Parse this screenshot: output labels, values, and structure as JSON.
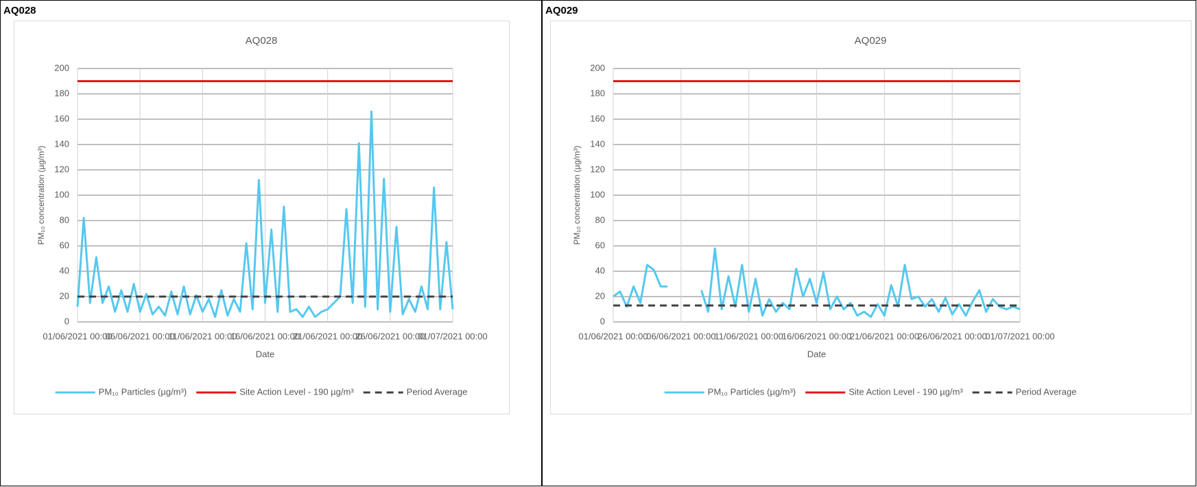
{
  "panels": [
    {
      "label": "AQ028"
    },
    {
      "label": "AQ029"
    }
  ],
  "chart_data": [
    {
      "type": "line",
      "title": "AQ028",
      "x_label": "Date",
      "y_label": "PM₁₀ concentration (µg/m³)",
      "grid": true,
      "legend": "bottom",
      "xlim": [
        "01/06/2021 00:00",
        "01/07/2021 00:00"
      ],
      "xticks": [
        "01/06/2021 00:00",
        "06/06/2021 00:00",
        "11/06/2021 00:00",
        "16/06/2021 00:00",
        "21/06/2021 00:00",
        "26/06/2021 00:00",
        "01/07/2021 00:00"
      ],
      "ylim": [
        0,
        200
      ],
      "yticks": [
        0,
        20,
        40,
        60,
        80,
        100,
        120,
        140,
        160,
        180,
        200
      ],
      "x": [
        "01/06/2021 00:00",
        "01/06/2021 12:00",
        "02/06/2021 00:00",
        "02/06/2021 12:00",
        "03/06/2021 00:00",
        "03/06/2021 12:00",
        "04/06/2021 00:00",
        "04/06/2021 12:00",
        "05/06/2021 00:00",
        "05/06/2021 12:00",
        "06/06/2021 00:00",
        "06/06/2021 12:00",
        "07/06/2021 00:00",
        "07/06/2021 12:00",
        "08/06/2021 00:00",
        "08/06/2021 12:00",
        "09/06/2021 00:00",
        "09/06/2021 12:00",
        "10/06/2021 00:00",
        "10/06/2021 12:00",
        "11/06/2021 00:00",
        "11/06/2021 12:00",
        "12/06/2021 00:00",
        "12/06/2021 12:00",
        "13/06/2021 00:00",
        "13/06/2021 12:00",
        "14/06/2021 00:00",
        "14/06/2021 12:00",
        "15/06/2021 00:00",
        "15/06/2021 12:00",
        "16/06/2021 00:00",
        "16/06/2021 12:00",
        "17/06/2021 00:00",
        "17/06/2021 12:00",
        "18/06/2021 00:00",
        "18/06/2021 12:00",
        "19/06/2021 00:00",
        "19/06/2021 12:00",
        "20/06/2021 00:00",
        "20/06/2021 12:00",
        "21/06/2021 00:00",
        "21/06/2021 12:00",
        "22/06/2021 00:00",
        "22/06/2021 12:00",
        "23/06/2021 00:00",
        "23/06/2021 12:00",
        "24/06/2021 00:00",
        "24/06/2021 12:00",
        "25/06/2021 00:00",
        "25/06/2021 12:00",
        "26/06/2021 00:00",
        "26/06/2021 12:00",
        "27/06/2021 00:00",
        "27/06/2021 12:00",
        "28/06/2021 00:00",
        "28/06/2021 12:00",
        "29/06/2021 00:00",
        "29/06/2021 12:00",
        "30/06/2021 00:00",
        "30/06/2021 12:00",
        "01/07/2021 00:00"
      ],
      "series": [
        {
          "name": "PM₁₀ Particles (µg/m³)",
          "color": "#55c8f0",
          "values": [
            12,
            82,
            15,
            51,
            15,
            28,
            8,
            25,
            8,
            30,
            8,
            22,
            6,
            12,
            5,
            24,
            6,
            28,
            6,
            21,
            8,
            18,
            4,
            25,
            5,
            18,
            8,
            62,
            10,
            112,
            15,
            73,
            8,
            91,
            8,
            10,
            4,
            12,
            4,
            8,
            10,
            15,
            20,
            89,
            15,
            141,
            12,
            166,
            10,
            113,
            8,
            75,
            6,
            18,
            8,
            28,
            10,
            106,
            10,
            63,
            10
          ]
        },
        {
          "name": "Site Action Level - 190 µg/m³",
          "color": "#e8141b",
          "values": [
            190,
            190,
            190,
            190,
            190,
            190,
            190,
            190,
            190,
            190,
            190,
            190,
            190,
            190,
            190,
            190,
            190,
            190,
            190,
            190,
            190,
            190,
            190,
            190,
            190,
            190,
            190,
            190,
            190,
            190,
            190,
            190,
            190,
            190,
            190,
            190,
            190,
            190,
            190,
            190,
            190,
            190,
            190,
            190,
            190,
            190,
            190,
            190,
            190,
            190,
            190,
            190,
            190,
            190,
            190,
            190,
            190,
            190,
            190,
            190,
            190
          ]
        },
        {
          "name": "Period Average",
          "color": "#404040",
          "dashed": true,
          "values": [
            20,
            20,
            20,
            20,
            20,
            20,
            20,
            20,
            20,
            20,
            20,
            20,
            20,
            20,
            20,
            20,
            20,
            20,
            20,
            20,
            20,
            20,
            20,
            20,
            20,
            20,
            20,
            20,
            20,
            20,
            20,
            20,
            20,
            20,
            20,
            20,
            20,
            20,
            20,
            20,
            20,
            20,
            20,
            20,
            20,
            20,
            20,
            20,
            20,
            20,
            20,
            20,
            20,
            20,
            20,
            20,
            20,
            20,
            20,
            20,
            20
          ]
        }
      ]
    },
    {
      "type": "line",
      "title": "AQ029",
      "x_label": "Date",
      "y_label": "PM₁₀ concentration (µg/m³)",
      "grid": true,
      "legend": "bottom",
      "xlim": [
        "01/06/2021 00:00",
        "01/07/2021 00:00"
      ],
      "xticks": [
        "01/06/2021 00:00",
        "06/06/2021 00:00",
        "11/06/2021 00:00",
        "16/06/2021 00:00",
        "21/06/2021 00:00",
        "26/06/2021 00:00",
        "01/07/2021 00:00"
      ],
      "ylim": [
        0,
        200
      ],
      "yticks": [
        0,
        20,
        40,
        60,
        80,
        100,
        120,
        140,
        160,
        180,
        200
      ],
      "x": [
        "01/06/2021 00:00",
        "01/06/2021 12:00",
        "02/06/2021 00:00",
        "02/06/2021 12:00",
        "03/06/2021 00:00",
        "03/06/2021 12:00",
        "04/06/2021 00:00",
        "04/06/2021 12:00",
        "05/06/2021 00:00",
        "05/06/2021 12:00",
        "06/06/2021 00:00",
        "06/06/2021 12:00",
        "07/06/2021 00:00",
        "07/06/2021 12:00",
        "08/06/2021 00:00",
        "08/06/2021 12:00",
        "09/06/2021 00:00",
        "09/06/2021 12:00",
        "10/06/2021 00:00",
        "10/06/2021 12:00",
        "11/06/2021 00:00",
        "11/06/2021 12:00",
        "12/06/2021 00:00",
        "12/06/2021 12:00",
        "13/06/2021 00:00",
        "13/06/2021 12:00",
        "14/06/2021 00:00",
        "14/06/2021 12:00",
        "15/06/2021 00:00",
        "15/06/2021 12:00",
        "16/06/2021 00:00",
        "16/06/2021 12:00",
        "17/06/2021 00:00",
        "17/06/2021 12:00",
        "18/06/2021 00:00",
        "18/06/2021 12:00",
        "19/06/2021 00:00",
        "19/06/2021 12:00",
        "20/06/2021 00:00",
        "20/06/2021 12:00",
        "21/06/2021 00:00",
        "21/06/2021 12:00",
        "22/06/2021 00:00",
        "22/06/2021 12:00",
        "23/06/2021 00:00",
        "23/06/2021 12:00",
        "24/06/2021 00:00",
        "24/06/2021 12:00",
        "25/06/2021 00:00",
        "25/06/2021 12:00",
        "26/06/2021 00:00",
        "26/06/2021 12:00",
        "27/06/2021 00:00",
        "27/06/2021 12:00",
        "28/06/2021 00:00",
        "28/06/2021 12:00",
        "29/06/2021 00:00",
        "29/06/2021 12:00",
        "30/06/2021 00:00",
        "30/06/2021 12:00",
        "01/07/2021 00:00"
      ],
      "series": [
        {
          "name": "PM₁₀ Particles (µg/m³)",
          "color": "#55c8f0",
          "values": [
            20,
            24,
            12,
            28,
            15,
            45,
            41,
            28,
            28,
            null,
            null,
            null,
            null,
            25,
            8,
            58,
            10,
            36,
            12,
            45,
            8,
            34,
            5,
            18,
            8,
            15,
            10,
            42,
            20,
            34,
            15,
            39,
            10,
            20,
            10,
            15,
            5,
            8,
            4,
            14,
            5,
            29,
            12,
            45,
            18,
            20,
            12,
            18,
            8,
            19,
            6,
            14,
            5,
            16,
            25,
            8,
            18,
            12,
            10,
            12,
            10
          ]
        },
        {
          "name": "Site Action Level - 190 µg/m³",
          "color": "#e8141b",
          "values": [
            190,
            190,
            190,
            190,
            190,
            190,
            190,
            190,
            190,
            190,
            190,
            190,
            190,
            190,
            190,
            190,
            190,
            190,
            190,
            190,
            190,
            190,
            190,
            190,
            190,
            190,
            190,
            190,
            190,
            190,
            190,
            190,
            190,
            190,
            190,
            190,
            190,
            190,
            190,
            190,
            190,
            190,
            190,
            190,
            190,
            190,
            190,
            190,
            190,
            190,
            190,
            190,
            190,
            190,
            190,
            190,
            190,
            190,
            190,
            190,
            190
          ]
        },
        {
          "name": "Period Average",
          "color": "#404040",
          "dashed": true,
          "values": [
            13,
            13,
            13,
            13,
            13,
            13,
            13,
            13,
            13,
            13,
            13,
            13,
            13,
            13,
            13,
            13,
            13,
            13,
            13,
            13,
            13,
            13,
            13,
            13,
            13,
            13,
            13,
            13,
            13,
            13,
            13,
            13,
            13,
            13,
            13,
            13,
            13,
            13,
            13,
            13,
            13,
            13,
            13,
            13,
            13,
            13,
            13,
            13,
            13,
            13,
            13,
            13,
            13,
            13,
            13,
            13,
            13,
            13,
            13,
            13,
            13
          ]
        }
      ]
    }
  ]
}
